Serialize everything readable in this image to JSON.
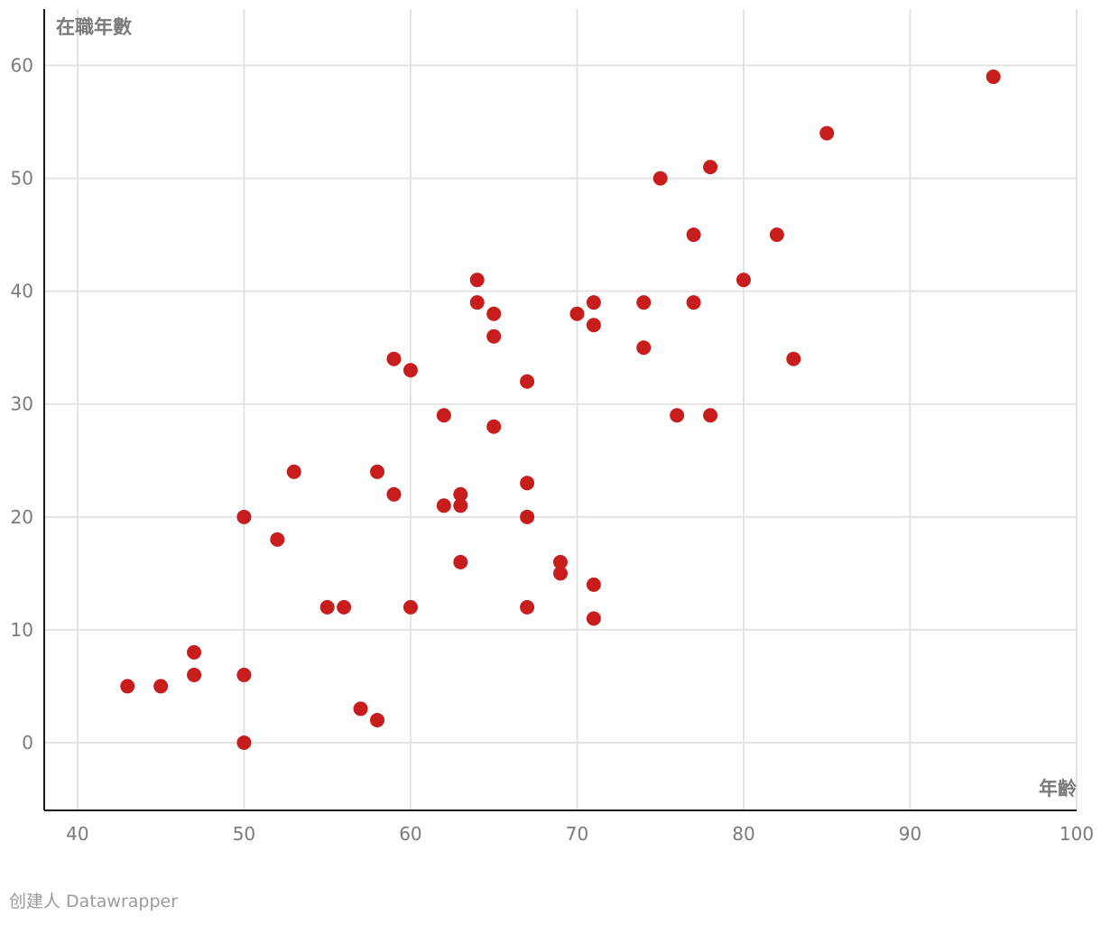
{
  "chart_data": {
    "type": "scatter",
    "xlabel": "年齡",
    "ylabel": "在職年數",
    "xlim": [
      38,
      100
    ],
    "ylim": [
      -6,
      65
    ],
    "x_ticks": [
      40,
      50,
      60,
      70,
      80,
      90,
      100
    ],
    "y_ticks": [
      0,
      10,
      20,
      30,
      40,
      50,
      60
    ],
    "grid": true,
    "point_color": "#c71e1d",
    "points": [
      {
        "x": 43,
        "y": 5
      },
      {
        "x": 45,
        "y": 5
      },
      {
        "x": 47,
        "y": 8
      },
      {
        "x": 47,
        "y": 6
      },
      {
        "x": 50,
        "y": 20
      },
      {
        "x": 50,
        "y": 6
      },
      {
        "x": 50,
        "y": 0
      },
      {
        "x": 52,
        "y": 18
      },
      {
        "x": 53,
        "y": 24
      },
      {
        "x": 55,
        "y": 12
      },
      {
        "x": 56,
        "y": 12
      },
      {
        "x": 57,
        "y": 3
      },
      {
        "x": 58,
        "y": 24
      },
      {
        "x": 58,
        "y": 2
      },
      {
        "x": 59,
        "y": 34
      },
      {
        "x": 59,
        "y": 22
      },
      {
        "x": 60,
        "y": 33
      },
      {
        "x": 60,
        "y": 12
      },
      {
        "x": 62,
        "y": 29
      },
      {
        "x": 62,
        "y": 21
      },
      {
        "x": 63,
        "y": 22
      },
      {
        "x": 63,
        "y": 21
      },
      {
        "x": 63,
        "y": 16
      },
      {
        "x": 64,
        "y": 41
      },
      {
        "x": 64,
        "y": 39
      },
      {
        "x": 65,
        "y": 38
      },
      {
        "x": 65,
        "y": 36
      },
      {
        "x": 65,
        "y": 28
      },
      {
        "x": 67,
        "y": 32
      },
      {
        "x": 67,
        "y": 23
      },
      {
        "x": 67,
        "y": 20
      },
      {
        "x": 67,
        "y": 12
      },
      {
        "x": 69,
        "y": 16
      },
      {
        "x": 69,
        "y": 15
      },
      {
        "x": 70,
        "y": 38
      },
      {
        "x": 71,
        "y": 39
      },
      {
        "x": 71,
        "y": 37
      },
      {
        "x": 71,
        "y": 14
      },
      {
        "x": 71,
        "y": 11
      },
      {
        "x": 74,
        "y": 39
      },
      {
        "x": 74,
        "y": 35
      },
      {
        "x": 75,
        "y": 50
      },
      {
        "x": 76,
        "y": 29
      },
      {
        "x": 77,
        "y": 45
      },
      {
        "x": 77,
        "y": 39
      },
      {
        "x": 78,
        "y": 51
      },
      {
        "x": 78,
        "y": 29
      },
      {
        "x": 80,
        "y": 41
      },
      {
        "x": 82,
        "y": 45
      },
      {
        "x": 83,
        "y": 34
      },
      {
        "x": 85,
        "y": 54
      },
      {
        "x": 95,
        "y": 59
      }
    ]
  },
  "footer": {
    "credit": "创建人 Datawrapper"
  }
}
